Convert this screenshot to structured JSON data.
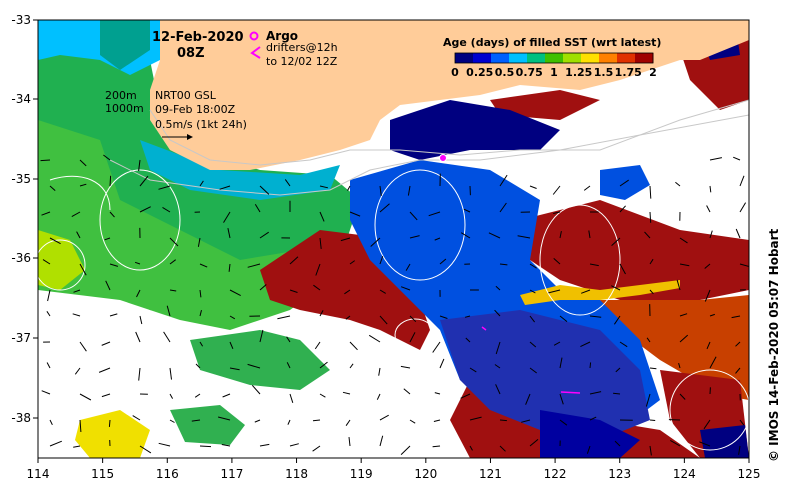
{
  "map": {
    "date": "12-Feb-2020",
    "time": "08Z",
    "contours": {
      "c200": "200m",
      "c1000": "1000m"
    },
    "product": "NRT00 GSL",
    "product_date": "09-Feb 18:00Z",
    "velocity_scale": "0.5m/s (1kt 24h)",
    "argo_label": "Argo",
    "drifters_label": "drifters@12h",
    "drifters_sub": "to 12/02 12Z",
    "credit": "© IMOS 14-Feb-2020 05:07 Hobart",
    "colorbar": {
      "title": "Age (days) of filled SST (wrt latest)",
      "ticks": [
        "0",
        "0.25",
        "0.5",
        "0.75",
        "1",
        "1.25",
        "1.5",
        "1.75",
        "2"
      ],
      "colors": [
        "#000080",
        "#0000d0",
        "#0060ff",
        "#00c0ff",
        "#00c080",
        "#40c000",
        "#a0e000",
        "#ffe000",
        "#ff8000",
        "#e03000",
        "#a00000"
      ]
    },
    "x_axis": {
      "ticks": [
        "114",
        "115",
        "116",
        "117",
        "118",
        "119",
        "120",
        "121",
        "122",
        "123",
        "124",
        "125"
      ]
    },
    "y_axis": {
      "ticks": [
        "-33",
        "-34",
        "-35",
        "-36",
        "-37",
        "-38"
      ]
    },
    "colors": {
      "land": "#ffcc99",
      "argo": "#ff00ff",
      "drifter": "#ff00ff"
    }
  }
}
